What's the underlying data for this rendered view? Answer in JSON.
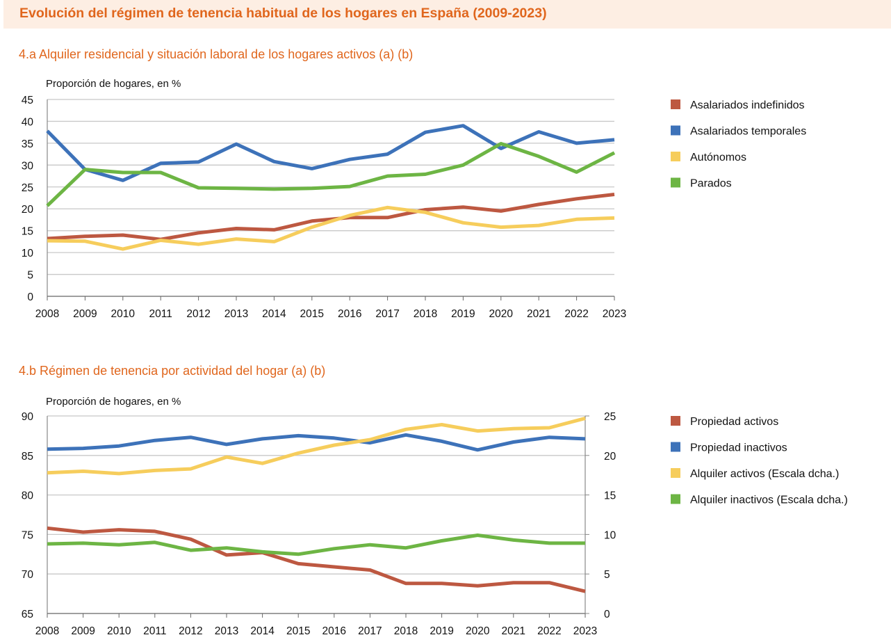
{
  "header": {
    "title": "Evolución del régimen de tenencia habitual de los hogares en España (2009-2023)"
  },
  "chart_data": [
    {
      "type": "line",
      "title": "4.a  Alquiler residencial y situación laboral de los hogares activos (a) (b)",
      "ylabel": "Proporción de hogares, en %",
      "xlabel": "",
      "ylim": [
        0,
        45
      ],
      "yticks": [
        "0",
        "5",
        "10",
        "15",
        "20",
        "25",
        "30",
        "35",
        "40",
        "45"
      ],
      "grid": true,
      "legend_position": "right",
      "x": [
        "2008",
        "2009",
        "2010",
        "2011",
        "2012",
        "2013",
        "2014",
        "2015",
        "2016",
        "2017",
        "2018",
        "2019",
        "2020",
        "2021",
        "2022",
        "2023"
      ],
      "series": [
        {
          "name": "Asalariados indefinidos",
          "color": "#bd5841",
          "values": [
            13.2,
            13.7,
            14.0,
            13.0,
            14.5,
            15.5,
            15.2,
            17.2,
            18.0,
            18.0,
            19.8,
            20.4,
            19.5,
            21.0,
            22.3,
            23.3
          ]
        },
        {
          "name": "Asalariados temporales",
          "color": "#3d72b9",
          "values": [
            37.8,
            29.0,
            26.5,
            30.4,
            30.7,
            34.8,
            30.8,
            29.2,
            31.3,
            32.5,
            37.5,
            39.0,
            33.8,
            37.6,
            35.0,
            35.8
          ]
        },
        {
          "name": "Autónomos",
          "color": "#f6cd5c",
          "values": [
            12.7,
            12.6,
            10.8,
            12.8,
            11.9,
            13.1,
            12.5,
            15.8,
            18.5,
            20.3,
            19.2,
            16.8,
            15.8,
            16.2,
            17.6,
            17.9
          ]
        },
        {
          "name": "Parados",
          "color": "#6db544",
          "values": [
            20.7,
            29.0,
            28.3,
            28.3,
            24.8,
            24.7,
            24.5,
            24.7,
            25.1,
            27.5,
            27.9,
            30.0,
            34.9,
            32.0,
            28.4,
            32.8
          ]
        }
      ]
    },
    {
      "type": "line",
      "title": "4.b  Régimen de tenencia por actividad del hogar (a) (b)",
      "ylabel": "Proporción de hogares, en %",
      "xlabel": "",
      "ylim": [
        65,
        90
      ],
      "yticks": [
        "65",
        "70",
        "75",
        "80",
        "85",
        "90"
      ],
      "y2lim": [
        0,
        25
      ],
      "y2ticks": [
        "0",
        "5",
        "10",
        "15",
        "20",
        "25"
      ],
      "grid": true,
      "legend_position": "right",
      "x": [
        "2008",
        "2009",
        "2010",
        "2011",
        "2012",
        "2013",
        "2014",
        "2015",
        "2016",
        "2017",
        "2018",
        "2019",
        "2020",
        "2021",
        "2022",
        "2023"
      ],
      "series": [
        {
          "name": "Propiedad activos",
          "color": "#bd5841",
          "axis": "left",
          "values": [
            75.8,
            75.3,
            75.6,
            75.4,
            74.4,
            72.4,
            72.7,
            71.3,
            70.9,
            70.5,
            68.8,
            68.8,
            68.5,
            68.9,
            68.9,
            67.8
          ]
        },
        {
          "name": "Propiedad inactivos",
          "color": "#3d72b9",
          "axis": "left",
          "values": [
            85.8,
            85.9,
            86.2,
            86.9,
            87.3,
            86.4,
            87.1,
            87.5,
            87.2,
            86.6,
            87.6,
            86.8,
            85.7,
            86.7,
            87.3,
            87.1
          ]
        },
        {
          "name": "Alquiler activos (Escala dcha.)",
          "color": "#f6cd5c",
          "axis": "right",
          "values": [
            17.8,
            18.0,
            17.7,
            18.1,
            18.3,
            19.8,
            19.0,
            20.3,
            21.3,
            22.0,
            23.3,
            23.9,
            23.1,
            23.4,
            23.5,
            24.7
          ]
        },
        {
          "name": "Alquiler inactivos (Escala dcha.)",
          "color": "#6db544",
          "axis": "right",
          "values": [
            8.8,
            8.9,
            8.7,
            9.0,
            8.0,
            8.3,
            7.8,
            7.5,
            8.2,
            8.7,
            8.3,
            9.2,
            9.9,
            9.3,
            8.9,
            8.9
          ]
        }
      ]
    }
  ]
}
